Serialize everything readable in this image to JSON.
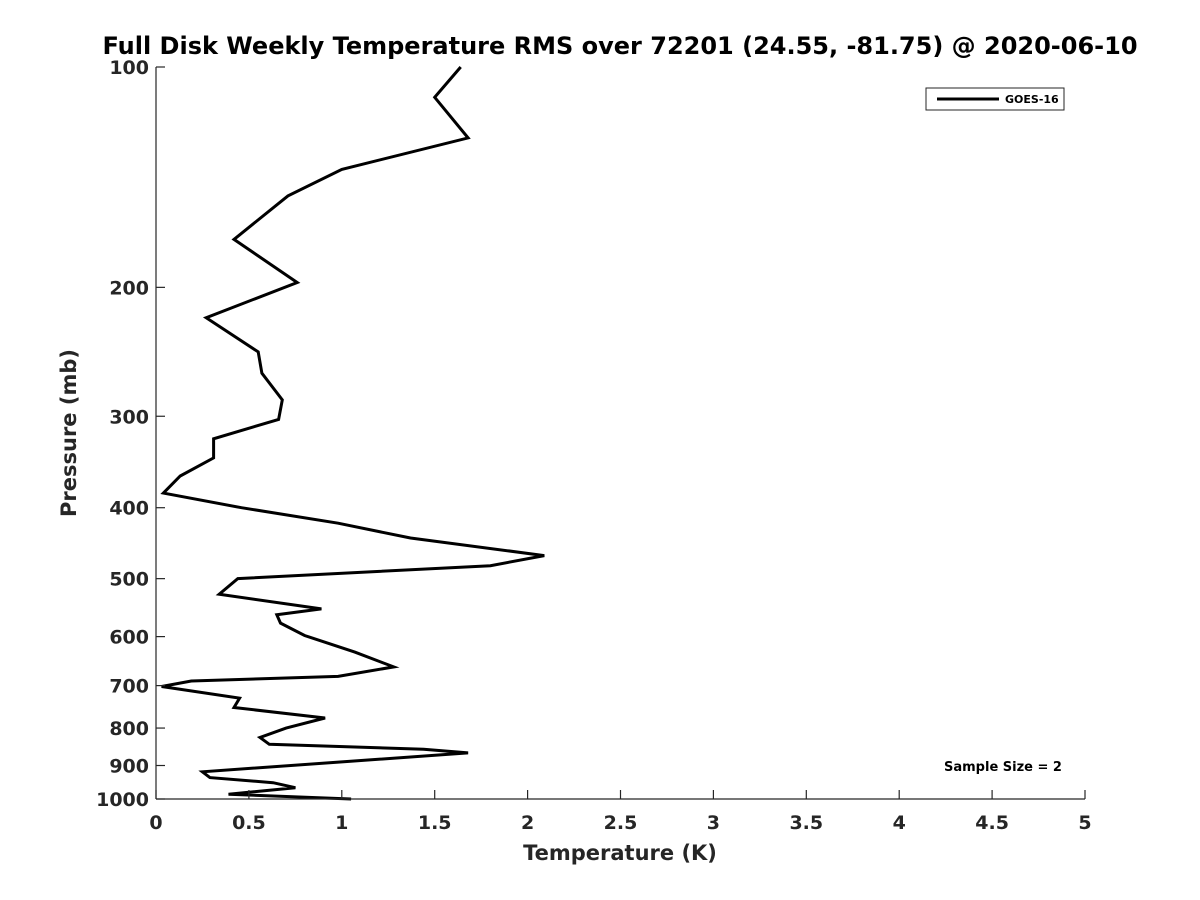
{
  "chart_data": {
    "type": "line",
    "title": "Full Disk Weekly Temperature RMS over 72201 (24.55, -81.75) @ 2020-06-10",
    "xlabel": "Temperature (K)",
    "ylabel": "Pressure (mb)",
    "xlim": [
      0,
      5
    ],
    "ylim": [
      100,
      1000
    ],
    "y_scale": "log",
    "y_reversed": true,
    "x_ticks": [
      "0",
      "0.5",
      "1",
      "1.5",
      "2",
      "2.5",
      "3",
      "3.5",
      "4",
      "4.5",
      "5"
    ],
    "y_ticks": [
      "100",
      "200",
      "300",
      "400",
      "500",
      "600",
      "700",
      "800",
      "900",
      "1000"
    ],
    "grid": false,
    "legend_position": "top-right",
    "series": [
      {
        "name": "GOES-16",
        "color": "#000000",
        "x": [
          1.64,
          1.5,
          1.68,
          1.0,
          0.71,
          0.42,
          0.76,
          0.27,
          0.55,
          0.57,
          0.68,
          0.66,
          0.31,
          0.31,
          0.13,
          0.04,
          0.46,
          0.98,
          1.37,
          2.09,
          1.8,
          0.44,
          0.34,
          0.89,
          0.65,
          0.67,
          0.8,
          1.07,
          1.28,
          0.98,
          0.19,
          0.03,
          0.45,
          0.42,
          0.91,
          0.7,
          0.56,
          0.61,
          1.44,
          1.68,
          0.25,
          0.29,
          0.63,
          0.75,
          0.39,
          1.05
        ],
        "y": [
          100,
          110,
          125,
          138,
          150,
          172,
          197,
          220,
          245,
          262,
          285,
          303,
          322,
          342,
          362,
          382,
          400,
          420,
          440,
          465,
          480,
          500,
          525,
          550,
          560,
          575,
          598,
          630,
          660,
          680,
          690,
          702,
          728,
          750,
          775,
          800,
          824,
          842,
          855,
          865,
          918,
          935,
          950,
          965,
          985,
          1000
        ]
      }
    ],
    "annotations": [
      "Sample Size = 2"
    ]
  }
}
